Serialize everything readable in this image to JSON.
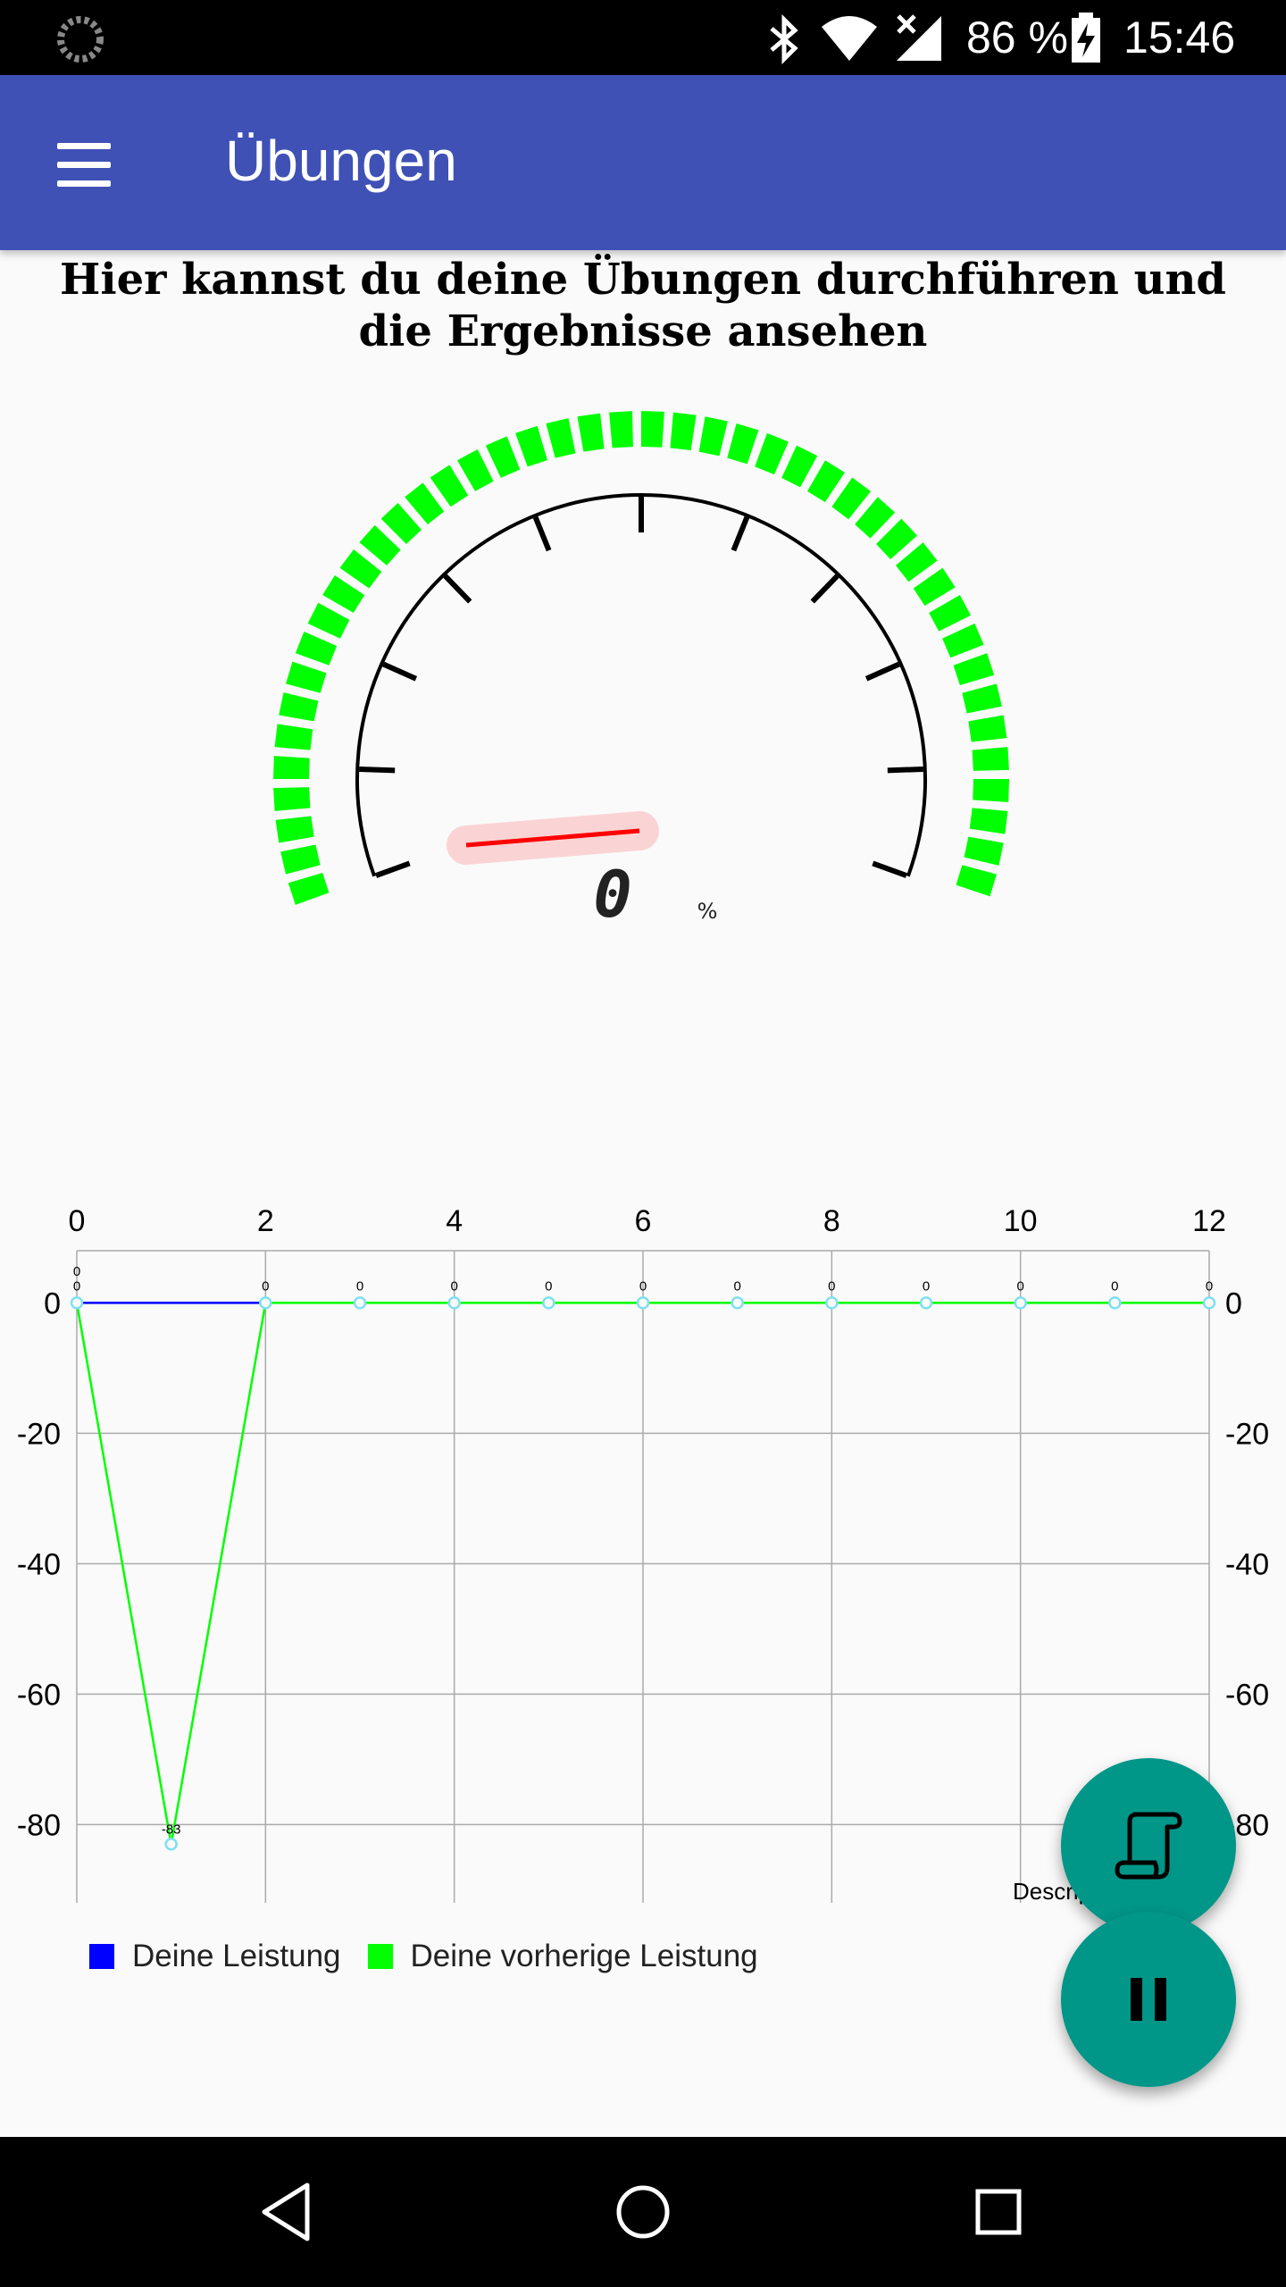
{
  "status_bar": {
    "battery_percent": "86 %",
    "time": "15:46",
    "icons": [
      "spinner-icon",
      "bluetooth-icon",
      "wifi-icon",
      "cell-signal-icon",
      "battery-charging-icon"
    ]
  },
  "app_bar": {
    "title": "Übungen",
    "menu_icon": "hamburger-menu-icon"
  },
  "headline": "Hier kannst du deine Übungen durchführen und die Ergebnisse ansehen",
  "gauge": {
    "value": 0,
    "unit": "%",
    "value_display": "0",
    "bar_color": "#00ff00",
    "needle_color": "#ff0000"
  },
  "chart_data": {
    "type": "line",
    "x_ticks": [
      "0",
      "2",
      "4",
      "6",
      "8",
      "10",
      "12"
    ],
    "y_ticks_left": [
      "0",
      "-20",
      "-40",
      "-60",
      "-80"
    ],
    "y_ticks_right": [
      "0",
      "-20",
      "-40",
      "-60",
      "-80"
    ],
    "xlim": [
      0,
      12
    ],
    "ylim": [
      -92,
      8
    ],
    "grid": true,
    "legend_position": "bottom-left",
    "description_text": "Description Label",
    "series": [
      {
        "name": "Deine Leistung",
        "color": "#0000ff",
        "x": [
          0,
          1,
          2
        ],
        "values": [
          0,
          0,
          0
        ]
      },
      {
        "name": "Deine vorherige Leistung",
        "color": "#00ff00",
        "x": [
          0,
          1,
          2,
          3,
          4,
          5,
          6,
          7,
          8,
          9,
          10,
          11,
          12
        ],
        "values": [
          0,
          -83,
          0,
          0,
          0,
          0,
          0,
          0,
          0,
          0,
          0,
          0,
          0
        ]
      }
    ],
    "point_labels": [
      "0",
      "-83",
      "0",
      "0",
      "0",
      "0",
      "0",
      "0",
      "0",
      "0",
      "0",
      "0",
      "0"
    ],
    "point_label_top_row": [
      "0",
      "0"
    ]
  },
  "fabs": {
    "scroll_icon": "scroll-icon",
    "pause_icon": "pause-icon",
    "fab_color": "#009688"
  },
  "nav_bar": {
    "icons": [
      "back-icon",
      "home-icon",
      "recents-icon"
    ]
  }
}
